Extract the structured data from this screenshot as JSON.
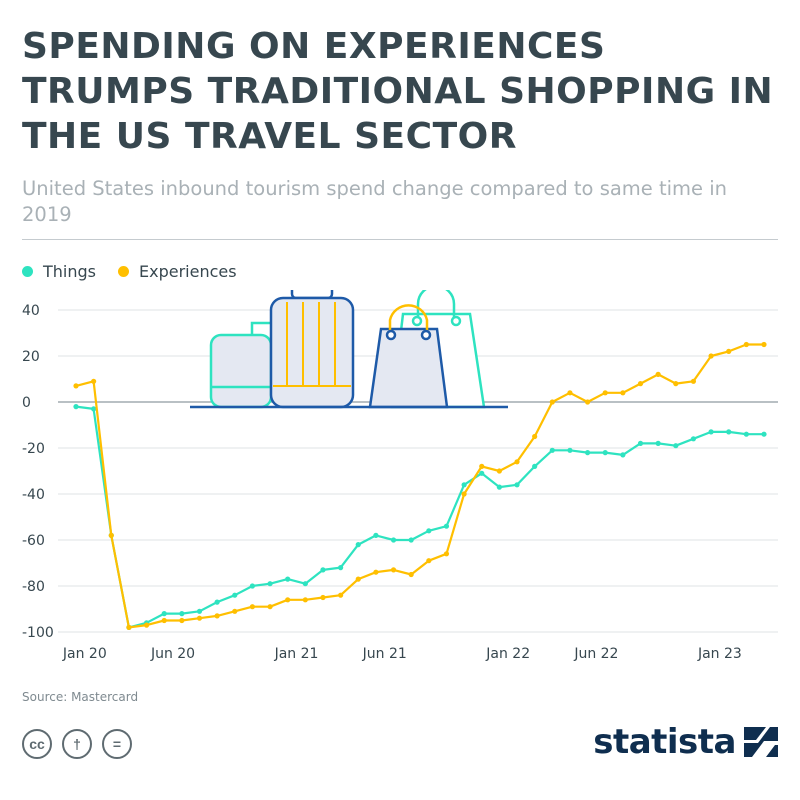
{
  "title": "SPENDING ON EXPERIENCES TRUMPS TRADITIONAL SHOPPING IN THE US TRAVEL SECTOR",
  "subtitle": "United States inbound tourism spend change compared to same time in 2019",
  "source": "Source: Mastercard",
  "brand": "statista",
  "license_icons": [
    "cc-icon",
    "attribution-icon",
    "no-derivatives-icon"
  ],
  "license_glyphs": [
    "cc",
    "†",
    "="
  ],
  "colors": {
    "things": "#2ee3c0",
    "experiences": "#ffbf00",
    "grid": "#dfe3e6",
    "text": "#37474f"
  },
  "chart_data": {
    "type": "line",
    "title": "",
    "xlabel": "",
    "ylabel": "",
    "ylim": [
      -100,
      40
    ],
    "yticks": [
      40,
      20,
      0,
      -20,
      -40,
      -60,
      -80,
      -100
    ],
    "xticks": [
      {
        "label": "Jan 20",
        "x": 0.5
      },
      {
        "label": "Jun 20",
        "x": 5.5
      },
      {
        "label": "Jan 21",
        "x": 12.5
      },
      {
        "label": "Jun 21",
        "x": 17.5
      },
      {
        "label": "Jan 22",
        "x": 24.5
      },
      {
        "label": "Jun 22",
        "x": 29.5
      },
      {
        "label": "Jan 23",
        "x": 36.5
      }
    ],
    "x": [
      0,
      1,
      2,
      3,
      4,
      5,
      6,
      7,
      8,
      9,
      10,
      11,
      12,
      13,
      14,
      15,
      16,
      17,
      18,
      19,
      20,
      21,
      22,
      23,
      24,
      25,
      26,
      27,
      28,
      29,
      30,
      31,
      32,
      33,
      34,
      35,
      36,
      37,
      38,
      39
    ],
    "grid": true,
    "legend": "top-left",
    "series": [
      {
        "name": "Things",
        "color": "#2ee3c0",
        "values": [
          -2,
          -3,
          -58,
          -98,
          -96,
          -92,
          -92,
          -91,
          -87,
          -84,
          -80,
          -79,
          -77,
          -79,
          -73,
          -72,
          -62,
          -58,
          -60,
          -60,
          -56,
          -54,
          -36,
          -31,
          -37,
          -36,
          -28,
          -21,
          -21,
          -22,
          -22,
          -23,
          -18,
          -18,
          -19,
          -16,
          -13,
          -13,
          -14,
          -14
        ]
      },
      {
        "name": "Experiences",
        "color": "#ffbf00",
        "values": [
          7,
          9,
          -58,
          -98,
          -97,
          -95,
          -95,
          -94,
          -93,
          -91,
          -89,
          -89,
          -86,
          -86,
          -85,
          -84,
          -77,
          -74,
          -73,
          -75,
          -69,
          -66,
          -40,
          -28,
          -30,
          -26,
          -15,
          0,
          4,
          0,
          4,
          4,
          8,
          12,
          8,
          9,
          20,
          22,
          25,
          25
        ]
      }
    ]
  }
}
